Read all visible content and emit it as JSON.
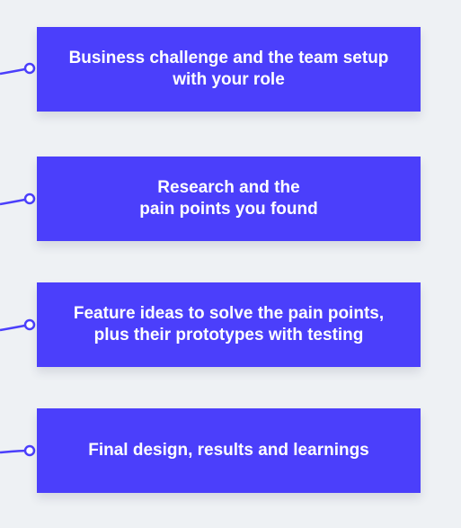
{
  "steps": [
    {
      "text": "Business challenge and the team setup\nwith your role"
    },
    {
      "text": "Research and the\npain points you found"
    },
    {
      "text": "Feature ideas to solve the pain points,\nplus their prototypes with testing"
    },
    {
      "text": "Final design, results and learnings"
    }
  ],
  "colors": {
    "background": "#eef1f4",
    "card": "#4b3ffb",
    "connector": "#4b3ffb",
    "text": "#ffffff"
  }
}
